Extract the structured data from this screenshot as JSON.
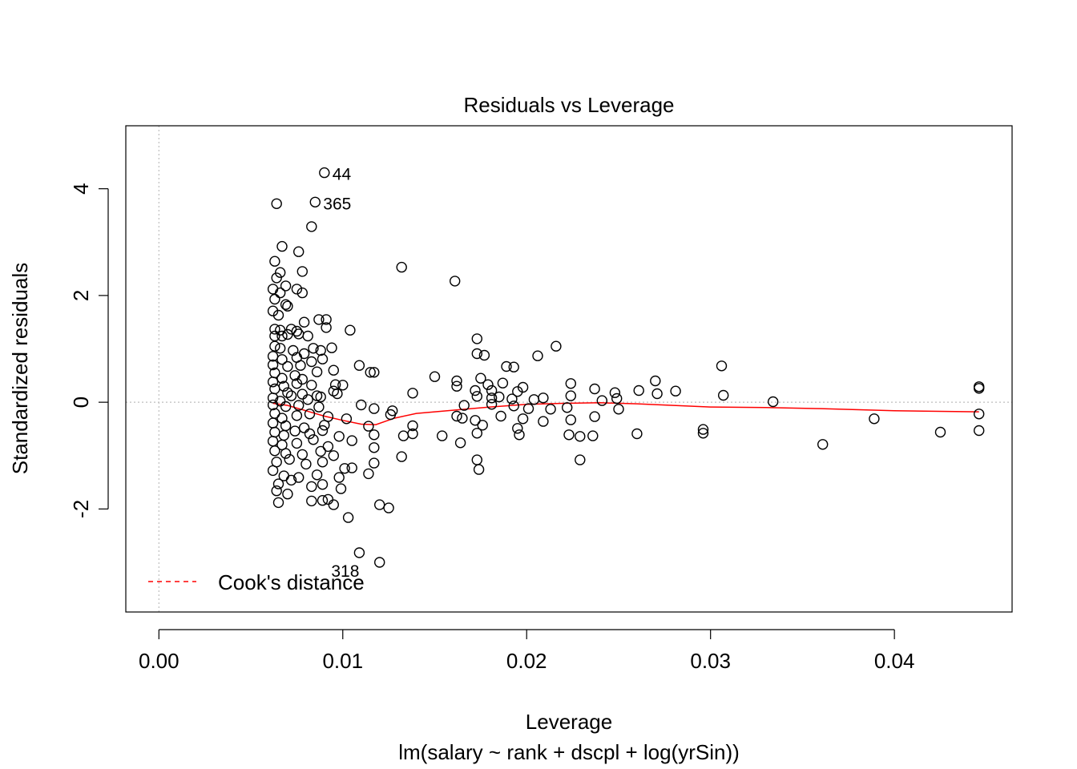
{
  "chart_data": {
    "type": "scatter",
    "title": "Residuals vs Leverage",
    "xlabel": "Leverage",
    "subtitle": "lm(salary ~ rank + dscpl + log(yrSin))",
    "ylabel": "Standardized residuals",
    "xlim": [
      -0.0018,
      0.0464
    ],
    "ylim": [
      -3.93,
      5.18
    ],
    "x_ticks": [
      0.0,
      0.01,
      0.02,
      0.03,
      0.04
    ],
    "x_tick_labels": [
      "0.00",
      "0.01",
      "0.02",
      "0.03",
      "0.04"
    ],
    "y_ticks": [
      -2,
      0,
      2,
      4
    ],
    "y_tick_labels": [
      "-2",
      "0",
      "2",
      "4"
    ],
    "reference_lines": {
      "h": 0,
      "v": 0,
      "style": "dotted",
      "color": "#bebebe"
    },
    "grid": false,
    "legend": {
      "position": "bottom-left",
      "entries": [
        {
          "label": "Cook's distance",
          "color": "#ff0000",
          "style": "dashed"
        }
      ]
    },
    "labeled_points": [
      {
        "label": "44",
        "x": 0.009,
        "y": 4.3
      },
      {
        "label": "365",
        "x": 0.0085,
        "y": 3.75
      },
      {
        "label": "318",
        "x": 0.0109,
        "y": -2.82
      }
    ],
    "series": [
      {
        "type": "scatter",
        "marker": "open-circle",
        "color": "#000000",
        "points": [
          [
            0.009,
            4.3
          ],
          [
            0.0085,
            3.75
          ],
          [
            0.0064,
            3.72
          ],
          [
            0.0083,
            3.29
          ],
          [
            0.0067,
            2.92
          ],
          [
            0.0076,
            2.82
          ],
          [
            0.0063,
            2.64
          ],
          [
            0.0132,
            2.53
          ],
          [
            0.0161,
            2.27
          ],
          [
            0.0066,
            2.43
          ],
          [
            0.0078,
            2.45
          ],
          [
            0.0064,
            2.33
          ],
          [
            0.0069,
            2.18
          ],
          [
            0.0062,
            2.12
          ],
          [
            0.0075,
            2.12
          ],
          [
            0.0066,
            2.05
          ],
          [
            0.0078,
            2.05
          ],
          [
            0.0063,
            1.93
          ],
          [
            0.0069,
            1.83
          ],
          [
            0.007,
            1.8
          ],
          [
            0.0062,
            1.71
          ],
          [
            0.0065,
            1.63
          ],
          [
            0.0087,
            1.55
          ],
          [
            0.0091,
            1.55
          ],
          [
            0.0079,
            1.5
          ],
          [
            0.0063,
            1.37
          ],
          [
            0.0066,
            1.35
          ],
          [
            0.0072,
            1.37
          ],
          [
            0.0075,
            1.33
          ],
          [
            0.0091,
            1.4
          ],
          [
            0.0104,
            1.35
          ],
          [
            0.0063,
            1.24
          ],
          [
            0.0067,
            1.24
          ],
          [
            0.007,
            1.27
          ],
          [
            0.0076,
            1.28
          ],
          [
            0.0081,
            1.24
          ],
          [
            0.0173,
            1.19
          ],
          [
            0.0216,
            1.05
          ],
          [
            0.0063,
            1.05
          ],
          [
            0.0066,
            1.01
          ],
          [
            0.0073,
            0.97
          ],
          [
            0.0079,
            0.91
          ],
          [
            0.0084,
            1.01
          ],
          [
            0.0088,
            0.97
          ],
          [
            0.0094,
            1.02
          ],
          [
            0.0062,
            0.86
          ],
          [
            0.0067,
            0.8
          ],
          [
            0.0075,
            0.84
          ],
          [
            0.0083,
            0.76
          ],
          [
            0.0089,
            0.81
          ],
          [
            0.0173,
            0.91
          ],
          [
            0.0177,
            0.88
          ],
          [
            0.0206,
            0.87
          ],
          [
            0.0062,
            0.7
          ],
          [
            0.007,
            0.67
          ],
          [
            0.0077,
            0.69
          ],
          [
            0.0086,
            0.57
          ],
          [
            0.0095,
            0.6
          ],
          [
            0.0109,
            0.69
          ],
          [
            0.0115,
            0.56
          ],
          [
            0.0117,
            0.56
          ],
          [
            0.0189,
            0.67
          ],
          [
            0.0193,
            0.66
          ],
          [
            0.0306,
            0.68
          ],
          [
            0.0063,
            0.55
          ],
          [
            0.0067,
            0.45
          ],
          [
            0.0074,
            0.5
          ],
          [
            0.0078,
            0.43
          ],
          [
            0.015,
            0.48
          ],
          [
            0.0162,
            0.4
          ],
          [
            0.0175,
            0.45
          ],
          [
            0.027,
            0.4
          ],
          [
            0.0062,
            0.38
          ],
          [
            0.0068,
            0.3
          ],
          [
            0.0075,
            0.35
          ],
          [
            0.0083,
            0.32
          ],
          [
            0.0096,
            0.33
          ],
          [
            0.01,
            0.32
          ],
          [
            0.0162,
            0.3
          ],
          [
            0.0179,
            0.33
          ],
          [
            0.0181,
            0.22
          ],
          [
            0.0187,
            0.36
          ],
          [
            0.0224,
            0.35
          ],
          [
            0.0237,
            0.25
          ],
          [
            0.0446,
            0.29
          ],
          [
            0.0446,
            0.26
          ],
          [
            0.0063,
            0.25
          ],
          [
            0.007,
            0.18
          ],
          [
            0.0078,
            0.15
          ],
          [
            0.0086,
            0.12
          ],
          [
            0.0095,
            0.21
          ],
          [
            0.0138,
            0.17
          ],
          [
            0.0172,
            0.22
          ],
          [
            0.0185,
            0.1
          ],
          [
            0.0195,
            0.2
          ],
          [
            0.0198,
            0.28
          ],
          [
            0.0248,
            0.18
          ],
          [
            0.0261,
            0.22
          ],
          [
            0.0271,
            0.16
          ],
          [
            0.0281,
            0.21
          ],
          [
            0.0307,
            0.13
          ],
          [
            0.0062,
            0.08
          ],
          [
            0.0066,
            0.02
          ],
          [
            0.0072,
            0.12
          ],
          [
            0.0081,
            0.05
          ],
          [
            0.0088,
            0.1
          ],
          [
            0.0097,
            0.16
          ],
          [
            0.0173,
            0.11
          ],
          [
            0.0181,
            0.08
          ],
          [
            0.0192,
            0.06
          ],
          [
            0.0204,
            0.05
          ],
          [
            0.0209,
            0.08
          ],
          [
            0.0224,
            0.12
          ],
          [
            0.0241,
            0.03
          ],
          [
            0.0249,
            0.07
          ],
          [
            0.0334,
            0.01
          ],
          [
            0.0062,
            -0.05
          ],
          [
            0.0069,
            -0.08
          ],
          [
            0.0076,
            -0.06
          ],
          [
            0.0087,
            -0.09
          ],
          [
            0.011,
            -0.05
          ],
          [
            0.0117,
            -0.12
          ],
          [
            0.0127,
            -0.16
          ],
          [
            0.0166,
            -0.06
          ],
          [
            0.0181,
            -0.04
          ],
          [
            0.0193,
            -0.07
          ],
          [
            0.0201,
            -0.12
          ],
          [
            0.0213,
            -0.13
          ],
          [
            0.0222,
            -0.1
          ],
          [
            0.025,
            -0.13
          ],
          [
            0.0446,
            -0.22
          ],
          [
            0.0063,
            -0.21
          ],
          [
            0.0067,
            -0.3
          ],
          [
            0.0075,
            -0.25
          ],
          [
            0.0082,
            -0.22
          ],
          [
            0.0092,
            -0.27
          ],
          [
            0.0102,
            -0.31
          ],
          [
            0.0126,
            -0.23
          ],
          [
            0.0162,
            -0.26
          ],
          [
            0.0172,
            -0.34
          ],
          [
            0.0186,
            -0.26
          ],
          [
            0.0198,
            -0.31
          ],
          [
            0.0209,
            -0.36
          ],
          [
            0.0224,
            -0.33
          ],
          [
            0.0237,
            -0.27
          ],
          [
            0.0389,
            -0.31
          ],
          [
            0.0062,
            -0.39
          ],
          [
            0.0069,
            -0.44
          ],
          [
            0.0079,
            -0.48
          ],
          [
            0.009,
            -0.43
          ],
          [
            0.0114,
            -0.45
          ],
          [
            0.0138,
            -0.44
          ],
          [
            0.0165,
            -0.3
          ],
          [
            0.0176,
            -0.43
          ],
          [
            0.0195,
            -0.49
          ],
          [
            0.0296,
            -0.51
          ],
          [
            0.0063,
            -0.56
          ],
          [
            0.0068,
            -0.62
          ],
          [
            0.0074,
            -0.54
          ],
          [
            0.0082,
            -0.59
          ],
          [
            0.0089,
            -0.53
          ],
          [
            0.0098,
            -0.64
          ],
          [
            0.0117,
            -0.61
          ],
          [
            0.0133,
            -0.63
          ],
          [
            0.0138,
            -0.59
          ],
          [
            0.0154,
            -0.63
          ],
          [
            0.0173,
            -0.58
          ],
          [
            0.0196,
            -0.61
          ],
          [
            0.0223,
            -0.61
          ],
          [
            0.0229,
            -0.64
          ],
          [
            0.0236,
            -0.63
          ],
          [
            0.026,
            -0.59
          ],
          [
            0.0296,
            -0.58
          ],
          [
            0.0425,
            -0.56
          ],
          [
            0.0446,
            -0.53
          ],
          [
            0.0062,
            -0.73
          ],
          [
            0.0067,
            -0.8
          ],
          [
            0.0075,
            -0.77
          ],
          [
            0.0084,
            -0.7
          ],
          [
            0.0092,
            -0.83
          ],
          [
            0.0105,
            -0.72
          ],
          [
            0.0117,
            -0.85
          ],
          [
            0.0164,
            -0.76
          ],
          [
            0.0361,
            -0.79
          ],
          [
            0.0063,
            -0.91
          ],
          [
            0.0069,
            -0.96
          ],
          [
            0.0078,
            -0.98
          ],
          [
            0.0088,
            -0.92
          ],
          [
            0.0095,
            -1.0
          ],
          [
            0.0132,
            -1.02
          ],
          [
            0.0173,
            -1.08
          ],
          [
            0.0229,
            -1.08
          ],
          [
            0.0064,
            -1.12
          ],
          [
            0.0071,
            -1.07
          ],
          [
            0.008,
            -1.16
          ],
          [
            0.0089,
            -1.12
          ],
          [
            0.0101,
            -1.24
          ],
          [
            0.0105,
            -1.23
          ],
          [
            0.0117,
            -1.14
          ],
          [
            0.0174,
            -1.26
          ],
          [
            0.0062,
            -1.28
          ],
          [
            0.0068,
            -1.38
          ],
          [
            0.0076,
            -1.41
          ],
          [
            0.0086,
            -1.36
          ],
          [
            0.0098,
            -1.41
          ],
          [
            0.0114,
            -1.34
          ],
          [
            0.0065,
            -1.53
          ],
          [
            0.0072,
            -1.46
          ],
          [
            0.0083,
            -1.58
          ],
          [
            0.0089,
            -1.54
          ],
          [
            0.0099,
            -1.62
          ],
          [
            0.0064,
            -1.66
          ],
          [
            0.007,
            -1.72
          ],
          [
            0.0083,
            -1.85
          ],
          [
            0.0089,
            -1.84
          ],
          [
            0.0092,
            -1.82
          ],
          [
            0.0095,
            -1.92
          ],
          [
            0.012,
            -1.92
          ],
          [
            0.0125,
            -1.98
          ],
          [
            0.0065,
            -1.88
          ],
          [
            0.0103,
            -2.16
          ],
          [
            0.0109,
            -2.82
          ],
          [
            0.012,
            -3.0
          ]
        ]
      },
      {
        "type": "line",
        "color": "#ff0000",
        "points": [
          [
            0.0062,
            -0.02
          ],
          [
            0.007,
            -0.06
          ],
          [
            0.008,
            -0.16
          ],
          [
            0.009,
            -0.26
          ],
          [
            0.01,
            -0.34
          ],
          [
            0.011,
            -0.41
          ],
          [
            0.0118,
            -0.42
          ],
          [
            0.0128,
            -0.3
          ],
          [
            0.014,
            -0.21
          ],
          [
            0.016,
            -0.15
          ],
          [
            0.018,
            -0.09
          ],
          [
            0.02,
            -0.04
          ],
          [
            0.022,
            -0.02
          ],
          [
            0.024,
            -0.01
          ],
          [
            0.026,
            -0.03
          ],
          [
            0.028,
            -0.06
          ],
          [
            0.03,
            -0.09
          ],
          [
            0.033,
            -0.1
          ],
          [
            0.036,
            -0.12
          ],
          [
            0.04,
            -0.16
          ],
          [
            0.0446,
            -0.18
          ]
        ]
      }
    ]
  }
}
